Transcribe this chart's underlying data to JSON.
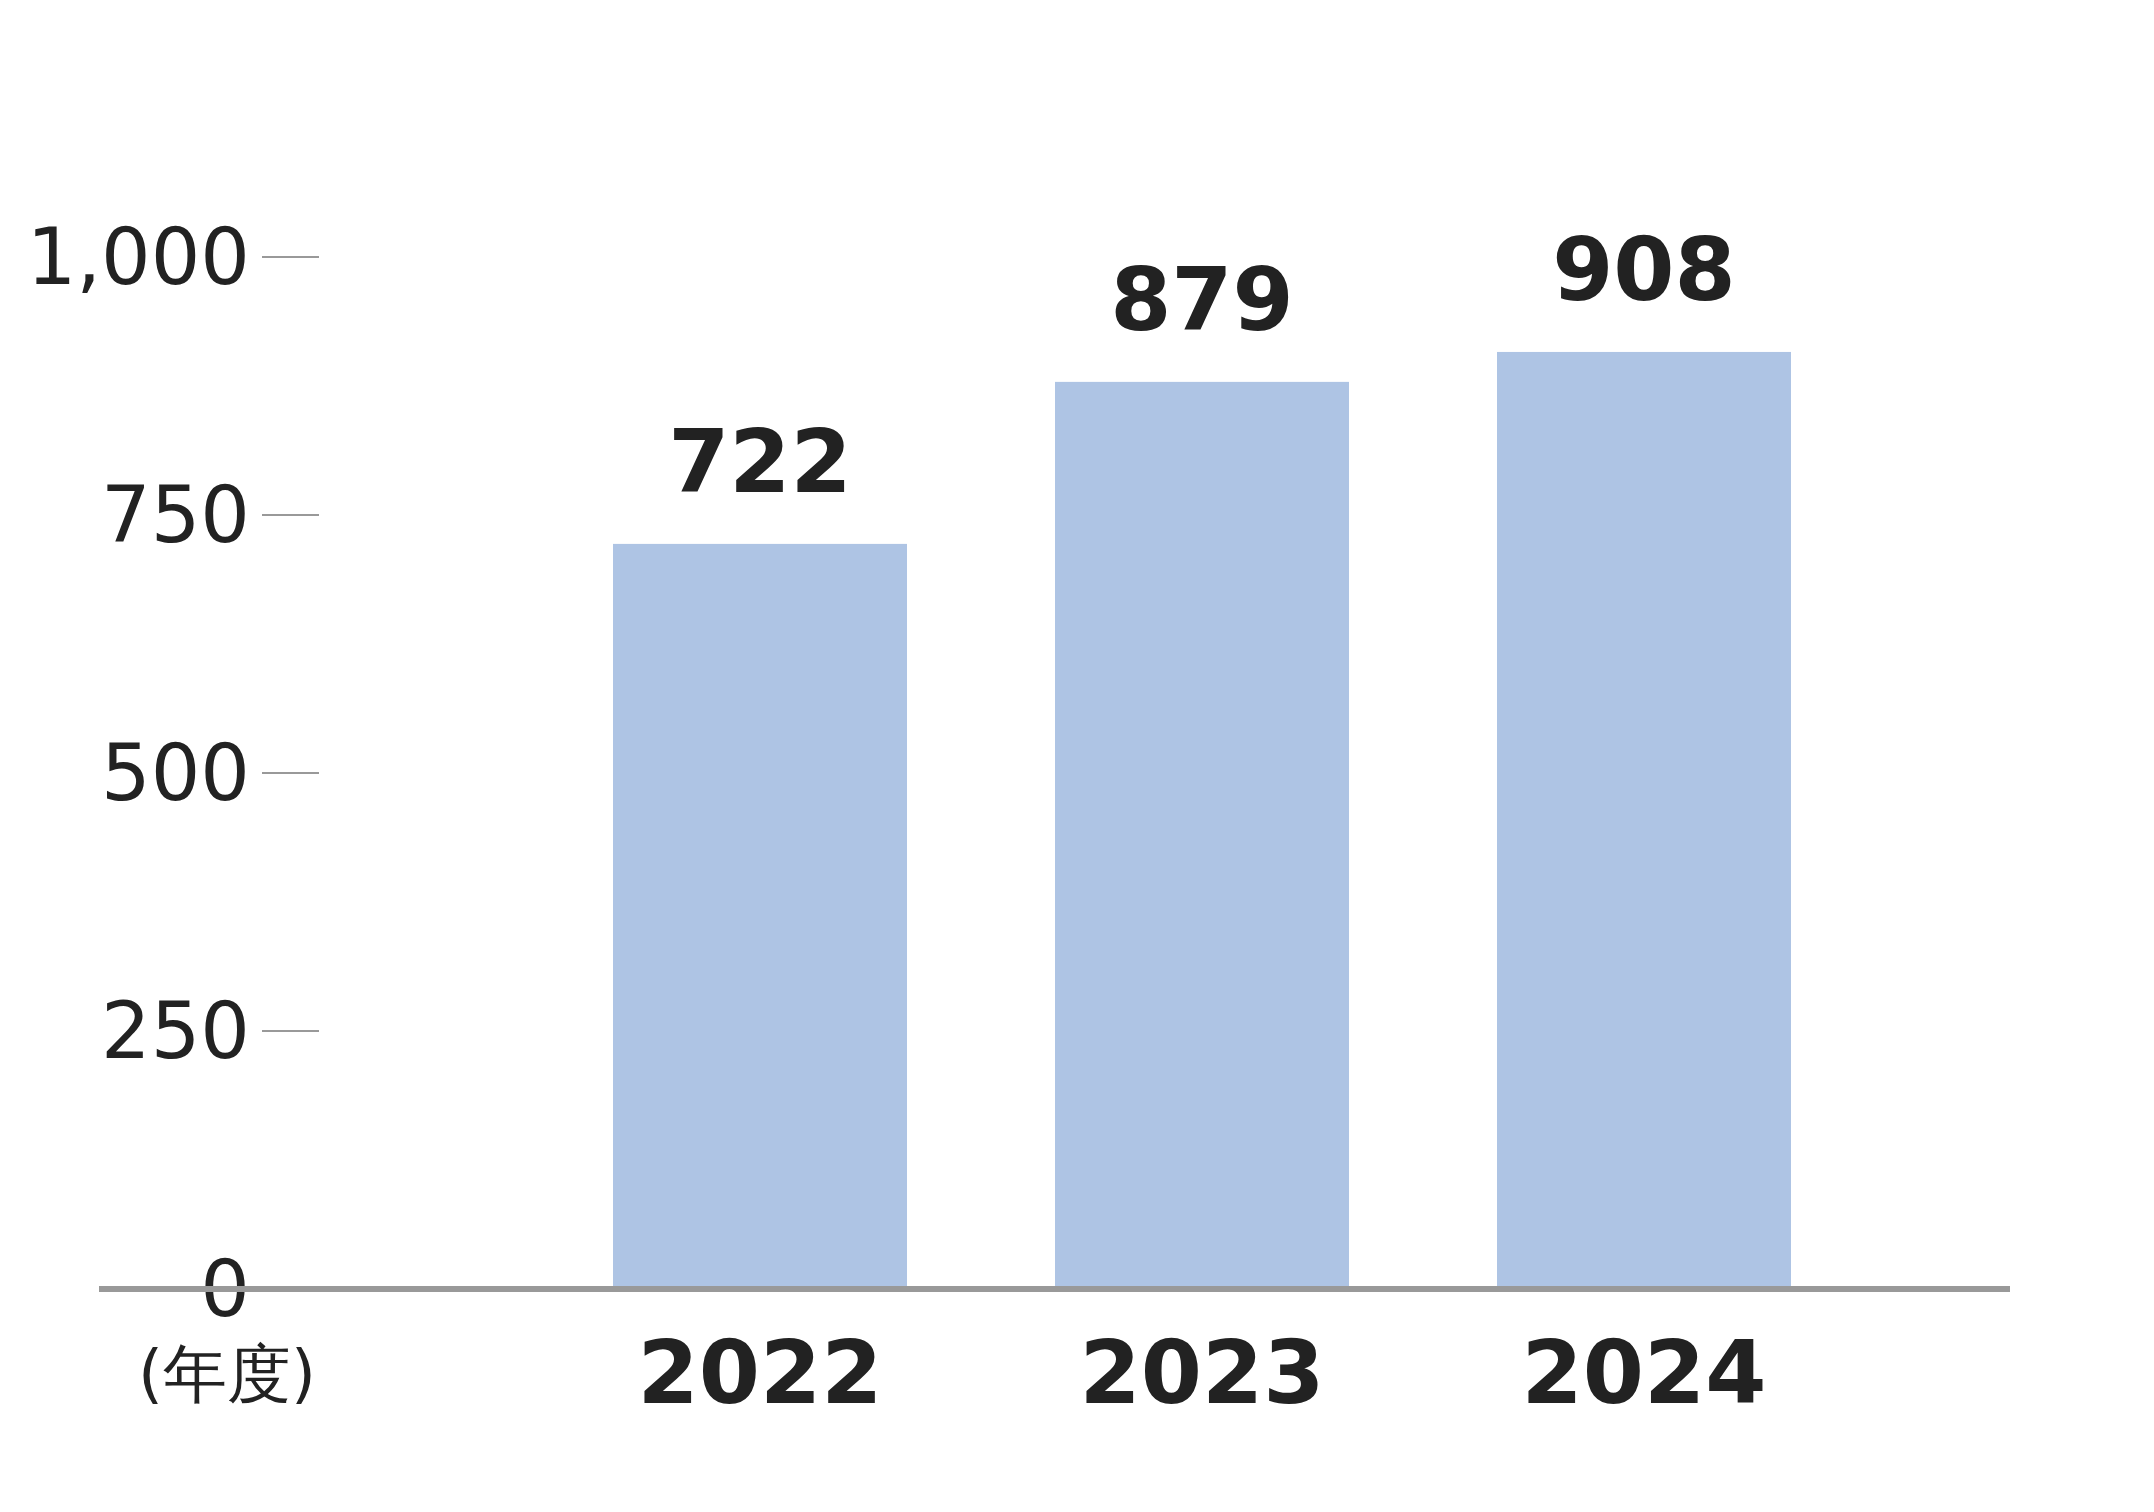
{
  "chart_data": {
    "type": "bar",
    "categories": [
      "2022",
      "2023",
      "2024"
    ],
    "values": [
      722,
      879,
      908
    ],
    "color": "#aec4e4",
    "ylim": [
      0,
      1000
    ],
    "yticks": [
      0,
      250,
      500,
      750,
      {
        "value": 1000,
        "label": "1,000"
      }
    ],
    "xlabel": "(年度)",
    "data_labels": true
  }
}
